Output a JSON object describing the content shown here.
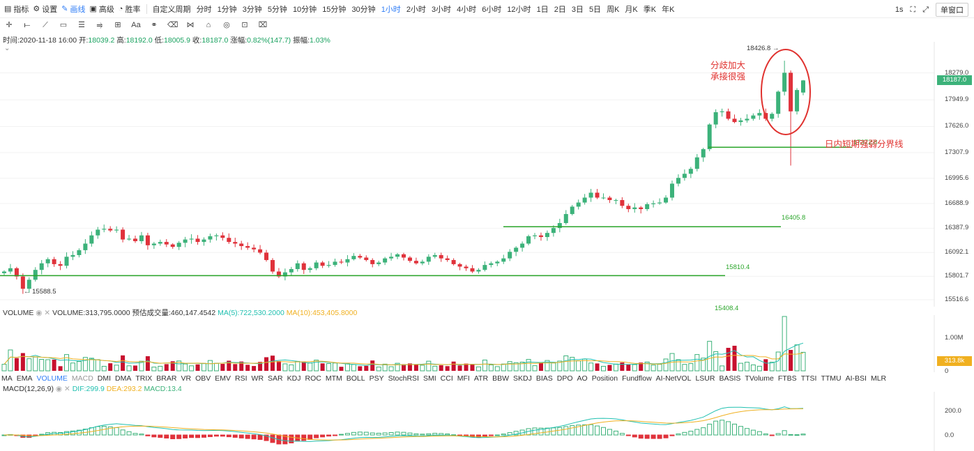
{
  "toolbar": {
    "items": [
      {
        "icon": "indicator-icon",
        "label": "指标"
      },
      {
        "icon": "settings-icon",
        "label": "设置"
      },
      {
        "icon": "draw-icon",
        "label": "画线"
      },
      {
        "icon": "advanced-icon",
        "label": "高级"
      },
      {
        "icon": "winrate-icon",
        "label": "胜率"
      }
    ],
    "custom_period": "自定义周期",
    "periods": [
      "分时",
      "1分钟",
      "3分钟",
      "5分钟",
      "10分钟",
      "15分钟",
      "30分钟",
      "1小时",
      "2小时",
      "3小时",
      "4小时",
      "6小时",
      "12小时",
      "1日",
      "2日",
      "3日",
      "5日",
      "周K",
      "月K",
      "季K",
      "年K"
    ],
    "active_period": "1小时",
    "right": {
      "interval": "1s",
      "window_button": "单窗口"
    }
  },
  "draw_tools": [
    "crosshair-icon",
    "horizontal-line-icon",
    "trend-line-icon",
    "rectangle-icon",
    "parallel-lines-icon",
    "fibonacci-icon",
    "measure-icon",
    "text-icon",
    "magnet-icon",
    "eraser-icon",
    "pattern-icon",
    "lock-icon",
    "eye-icon",
    "grid-icon",
    "trash-icon"
  ],
  "info": {
    "time_label": "时间:",
    "time": "2020-11-18 16:00",
    "open_label": "开:",
    "open": "18039.2",
    "high_label": "高:",
    "high": "18192.0",
    "low_label": "低:",
    "low": "18005.9",
    "close_label": "收:",
    "close": "18187.0",
    "change_label": "涨幅:",
    "change": "0.82%(147.7)",
    "amp_label": "振幅:",
    "amp": "1.03%"
  },
  "price_axis": [
    "18279.0",
    "17949.9",
    "17626.0",
    "17307.9",
    "16995.6",
    "16688.9",
    "16387.9",
    "16092.1",
    "15801.7",
    "15516.6"
  ],
  "current_price": "18187.0",
  "levels": [
    {
      "value": "17372.8"
    },
    {
      "value": "16405.8"
    },
    {
      "value": "15810.4"
    },
    {
      "value": "15408.4"
    }
  ],
  "marks": {
    "high": "18426.8",
    "low": "15588.5"
  },
  "annotations": {
    "divergence_line1": "分歧加大",
    "divergence_line2": "承接很强",
    "intraday": "日内短期强弱分界线"
  },
  "volume": {
    "title": "VOLUME",
    "value_text": "VOLUME:313,795.0000",
    "est_text": "预估成交量:460,147.4542",
    "ma5_text": "MA(5):722,530.2000",
    "ma10_text": "MA(10):453,405.8000",
    "axis": [
      "1.00M",
      "0"
    ],
    "current_tag": "313.8k"
  },
  "indicators": {
    "items": [
      "MA",
      "EMA",
      "VOLUME",
      "MACD",
      "DMI",
      "DMA",
      "TRIX",
      "BRAR",
      "VR",
      "OBV",
      "EMV",
      "RSI",
      "WR",
      "SAR",
      "KDJ",
      "ROC",
      "MTM",
      "BOLL",
      "PSY",
      "StochRSI",
      "SMI",
      "CCI",
      "MFI",
      "ATR",
      "BBW",
      "SKDJ",
      "BIAS",
      "DPO",
      "AO",
      "Position",
      "Fundflow",
      "AI-NetVOL",
      "LSUR",
      "BASIS",
      "TVolume",
      "FTBS",
      "TTSI",
      "TTMU",
      "AI-BSI",
      "MLR"
    ],
    "active": "VOLUME",
    "dim": "MACD"
  },
  "macd": {
    "title": "MACD(12,26,9)",
    "dif_text": "DIF:299.9",
    "dea_text": "DEA:293.2",
    "macd_text": "MACD:13.4",
    "axis": [
      "200.0",
      "0.0"
    ]
  },
  "colors": {
    "up": "#3cb27a",
    "down": "#e0323b",
    "level": "#2aa52a",
    "accent": "#2f7df6",
    "ma5": "#20c0b0",
    "ma10": "#f0b020"
  },
  "chart_data": {
    "type": "candlestick",
    "interval": "1小时",
    "y_axis_ticks": [
      15516.6,
      15801.7,
      16092.1,
      16387.9,
      16688.9,
      16995.6,
      17307.9,
      17626.0,
      17949.9,
      18279.0
    ],
    "ylim": [
      15400,
      18450
    ],
    "last": {
      "time": "2020-11-18 16:00",
      "open": 18039.2,
      "high": 18192.0,
      "low": 18005.9,
      "close": 18187.0
    },
    "period_high": 18426.8,
    "period_low": 15588.5,
    "support_resistance": [
      17372.8,
      16405.8,
      15810.4,
      15408.4
    ],
    "closes_approx": [
      15860,
      15900,
      15800,
      15650,
      15760,
      15880,
      15960,
      16010,
      15950,
      15930,
      16040,
      16060,
      16120,
      16200,
      16300,
      16370,
      16380,
      16360,
      16370,
      16250,
      16260,
      16230,
      16300,
      16180,
      16200,
      16220,
      16190,
      16160,
      16210,
      16250,
      16260,
      16220,
      16250,
      16290,
      16300,
      16270,
      16220,
      16200,
      16170,
      16150,
      16130,
      16090,
      16000,
      15860,
      15800,
      15850,
      15890,
      15960,
      15880,
      15900,
      15970,
      15930,
      15940,
      15980,
      15970,
      16010,
      16050,
      16030,
      16000,
      15950,
      15970,
      16020,
      16040,
      16070,
      16030,
      15990,
      15960,
      15980,
      16040,
      16060,
      16020,
      16000,
      15950,
      15920,
      15900,
      15860,
      15880,
      15940,
      15960,
      15980,
      16020,
      16100,
      16150,
      16200,
      16290,
      16300,
      16280,
      16330,
      16390,
      16450,
      16560,
      16650,
      16700,
      16760,
      16820,
      16760,
      16760,
      16730,
      16730,
      16660,
      16620,
      16640,
      16620,
      16680,
      16690,
      16700,
      16760,
      16930,
      17000,
      17050,
      17110,
      17250,
      17350,
      17650,
      17800,
      17810,
      17720,
      17680,
      17700,
      17720,
      17760,
      17790,
      17720,
      17780,
      18050,
      18280,
      17810,
      18070,
      18187
    ]
  }
}
